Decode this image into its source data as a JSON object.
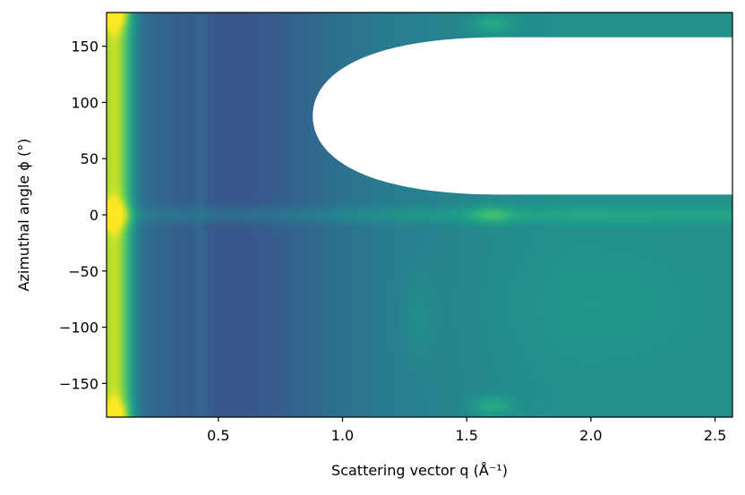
{
  "chart_data": {
    "type": "heatmap",
    "xlabel": "Scattering vector q (Å⁻¹)",
    "ylabel": "Azimuthal angle ϕ (°)",
    "xlim": [
      0.05,
      2.57
    ],
    "ylim": [
      -180,
      180
    ],
    "x_ticks": [
      {
        "value": 0.5,
        "label": "0.5"
      },
      {
        "value": 1.0,
        "label": "1.0"
      },
      {
        "value": 1.5,
        "label": "1.5"
      },
      {
        "value": 2.0,
        "label": "2.0"
      },
      {
        "value": 2.5,
        "label": "2.5"
      }
    ],
    "y_ticks": [
      {
        "value": 150,
        "label": "150"
      },
      {
        "value": 100,
        "label": "100"
      },
      {
        "value": 50,
        "label": "50"
      },
      {
        "value": 0,
        "label": "0"
      },
      {
        "value": -50,
        "label": "−50"
      },
      {
        "value": -100,
        "label": "−100"
      },
      {
        "value": -150,
        "label": "−150"
      }
    ],
    "colormap": "viridis",
    "masked_region": {
      "shape": "half-ellipse",
      "q_min": 0.88,
      "center_phi": 88,
      "phi_half_width": 70,
      "color": "#ffffff"
    },
    "features": [
      {
        "name": "low-q edge",
        "q": 0.08,
        "intensity": "high"
      },
      {
        "name": "ring",
        "q": 0.43,
        "intensity": "medium"
      },
      {
        "name": "equatorial streak",
        "phi": 0,
        "intensity": "medium"
      },
      {
        "name": "peak",
        "q": 1.6,
        "phi": 0,
        "intensity": "high"
      },
      {
        "name": "peak",
        "q": 1.6,
        "phi": 170,
        "intensity": "high"
      },
      {
        "name": "arc",
        "q": 1.3,
        "phi": -90,
        "intensity": "medium"
      }
    ]
  }
}
